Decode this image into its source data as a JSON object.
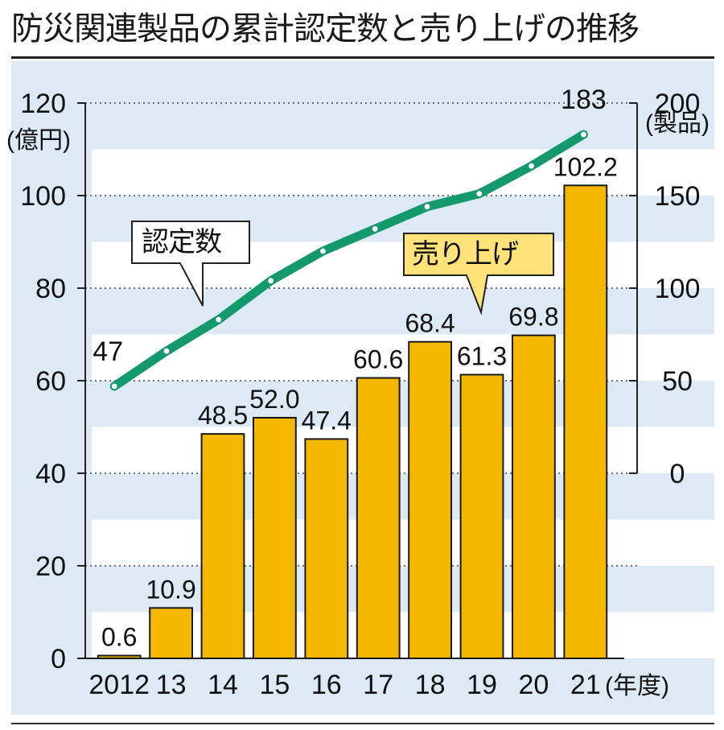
{
  "title": "防災関連製品の累計認定数と売り上げの推移",
  "chart_data": {
    "type": "bar",
    "categories": [
      "2012",
      "13",
      "14",
      "15",
      "16",
      "17",
      "18",
      "19",
      "20",
      "21"
    ],
    "x_unit": "(年度)",
    "series": [
      {
        "name": "売り上げ",
        "type": "bar",
        "axis": "left",
        "values": [
          0.6,
          10.9,
          48.5,
          52.0,
          47.4,
          60.6,
          68.4,
          61.3,
          69.8,
          102.2
        ],
        "value_labels": [
          "0.6",
          "10.9",
          "48.5",
          "52.0",
          "47.4",
          "60.6",
          "68.4",
          "61.3",
          "69.8",
          "102.2"
        ],
        "color": "#f5b800"
      },
      {
        "name": "認定数",
        "type": "line",
        "axis": "right",
        "values": [
          47,
          66,
          83,
          104,
          120,
          132,
          144,
          151,
          166,
          183
        ],
        "value_labels": [
          "47",
          "",
          "",
          "",
          "",
          "",
          "",
          "",
          "",
          "183"
        ],
        "color": "#13996b"
      }
    ],
    "y_left": {
      "label": "(億円)",
      "ylim": [
        0,
        120
      ],
      "ticks": [
        "0",
        "20",
        "40",
        "60",
        "80",
        "100",
        "120"
      ]
    },
    "y_right": {
      "label": "(製品)",
      "ylim": [
        0,
        200
      ],
      "ticks": [
        "0",
        "50",
        "100",
        "150",
        "200"
      ]
    },
    "colors": {
      "background": "#ddeaf5",
      "band": "#ffffff",
      "bar_edge": "#1a1a1a",
      "line": "#13996b"
    }
  }
}
